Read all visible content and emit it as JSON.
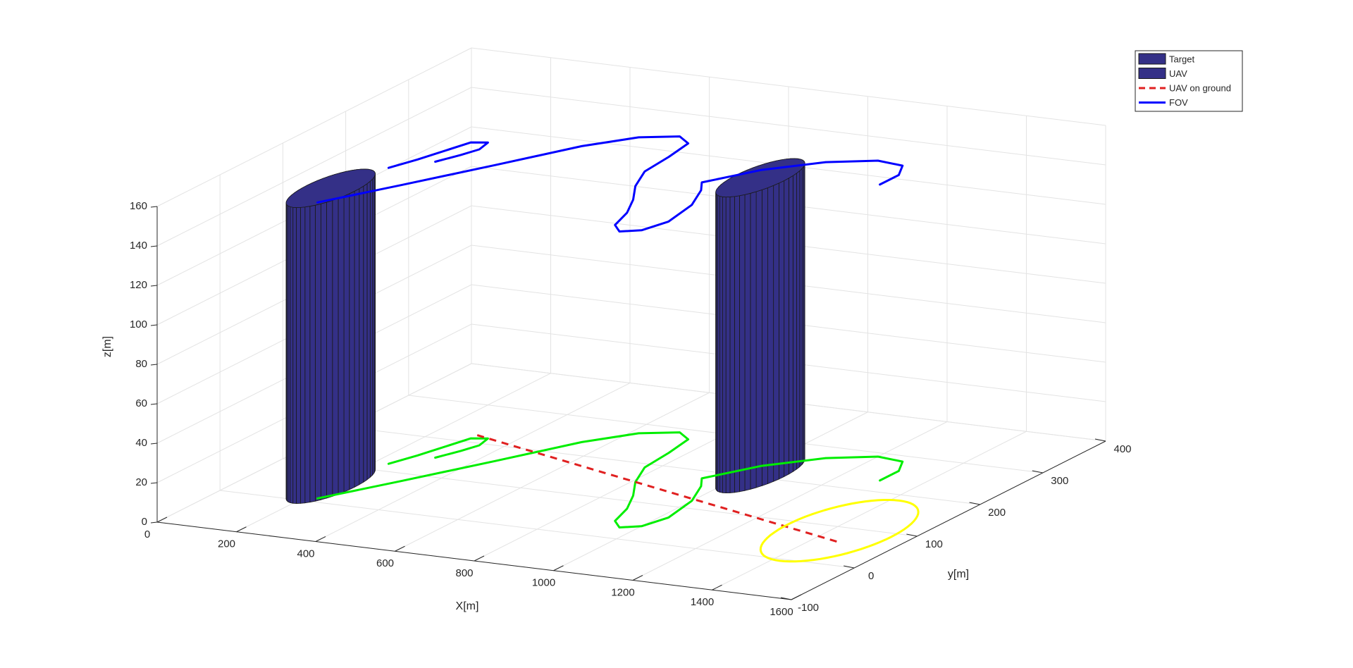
{
  "chart_data": {
    "type": "3d-line",
    "title": "",
    "xlabel": "X[m]",
    "ylabel": "y[m]",
    "zlabel": "z[m]",
    "xlim": [
      0,
      1600
    ],
    "ylim": [
      -100,
      400
    ],
    "zlim": [
      0,
      160
    ],
    "xticks": [
      {
        "value": 0,
        "label": "0"
      },
      {
        "value": 200,
        "label": "200"
      },
      {
        "value": 400,
        "label": "400"
      },
      {
        "value": 600,
        "label": "600"
      },
      {
        "value": 800,
        "label": "800"
      },
      {
        "value": 1000,
        "label": "1000"
      },
      {
        "value": 1200,
        "label": "1200"
      },
      {
        "value": 1400,
        "label": "1400"
      },
      {
        "value": 1600,
        "label": "1600"
      }
    ],
    "yticks": [
      {
        "value": -100,
        "label": "-100"
      },
      {
        "value": 0,
        "label": "0"
      },
      {
        "value": 100,
        "label": "100"
      },
      {
        "value": 200,
        "label": "200"
      },
      {
        "value": 300,
        "label": "300"
      },
      {
        "value": 400,
        "label": "400"
      }
    ],
    "zticks": [
      {
        "value": 0,
        "label": "0"
      },
      {
        "value": 20,
        "label": "20"
      },
      {
        "value": 40,
        "label": "40"
      },
      {
        "value": 60,
        "label": "60"
      },
      {
        "value": 80,
        "label": "80"
      },
      {
        "value": 100,
        "label": "100"
      },
      {
        "value": 120,
        "label": "120"
      },
      {
        "value": 140,
        "label": "140"
      },
      {
        "value": 160,
        "label": "160"
      }
    ],
    "grid": true,
    "legend_position": "top-right",
    "legend": [
      {
        "label": "Target",
        "style": "patch",
        "color": "#343087"
      },
      {
        "label": "UAV",
        "style": "patch",
        "color": "#343087"
      },
      {
        "label": "UAV on ground",
        "style": "dashed",
        "color": "#e02020"
      },
      {
        "label": "FOV",
        "style": "solid",
        "color": "#0000ff"
      }
    ],
    "cylinders": [
      {
        "name": "cylinder-1",
        "center": [
          200,
          50
        ],
        "radius": 60,
        "z_bottom": 0,
        "z_top": 150,
        "color": "#343087"
      },
      {
        "name": "cylinder-2",
        "center": [
          1030,
          210
        ],
        "radius": 60,
        "z_bottom": 0,
        "z_top": 150,
        "color": "#343087"
      }
    ],
    "series": [
      {
        "style": "solid",
        "color": "#0000ff",
        "z": 150,
        "points": [
          [
            230,
            10
          ],
          [
            330,
            80
          ],
          [
            440,
            160
          ],
          [
            540,
            235
          ],
          [
            620,
            275
          ],
          [
            700,
            290
          ],
          [
            745,
            275
          ],
          [
            760,
            235
          ],
          [
            770,
            190
          ],
          [
            810,
            150
          ],
          [
            860,
            115
          ],
          [
            900,
            80
          ],
          [
            925,
            45
          ],
          [
            960,
            30
          ],
          [
            1000,
            40
          ],
          [
            1020,
            70
          ],
          [
            1000,
            120
          ],
          [
            960,
            160
          ],
          [
            930,
            180
          ],
          [
            1000,
            230
          ],
          [
            1100,
            270
          ],
          [
            1200,
            290
          ],
          [
            1270,
            285
          ],
          [
            1300,
            260
          ],
          [
            1300,
            230
          ]
        ]
      },
      {
        "style": "solid",
        "color": "#0000ff",
        "z": 150,
        "points": [
          [
            305,
            150
          ],
          [
            330,
            175
          ],
          [
            345,
            195
          ],
          [
            335,
            215
          ],
          [
            300,
            210
          ],
          [
            260,
            150
          ],
          [
            235,
            120
          ]
        ]
      },
      {
        "style": "solid",
        "color": "#00ee00",
        "z": 0,
        "points": [
          [
            230,
            10
          ],
          [
            330,
            80
          ],
          [
            440,
            160
          ],
          [
            540,
            235
          ],
          [
            620,
            275
          ],
          [
            700,
            290
          ],
          [
            745,
            275
          ],
          [
            760,
            235
          ],
          [
            770,
            190
          ],
          [
            810,
            150
          ],
          [
            860,
            115
          ],
          [
            900,
            80
          ],
          [
            925,
            45
          ],
          [
            960,
            30
          ],
          [
            1000,
            40
          ],
          [
            1020,
            70
          ],
          [
            1000,
            120
          ],
          [
            960,
            160
          ],
          [
            930,
            180
          ],
          [
            1000,
            230
          ],
          [
            1100,
            270
          ],
          [
            1200,
            290
          ],
          [
            1270,
            285
          ],
          [
            1300,
            260
          ],
          [
            1300,
            230
          ]
        ]
      },
      {
        "style": "solid",
        "color": "#00ee00",
        "z": 0,
        "points": [
          [
            305,
            150
          ],
          [
            330,
            175
          ],
          [
            345,
            195
          ],
          [
            335,
            215
          ],
          [
            300,
            210
          ],
          [
            260,
            150
          ],
          [
            235,
            120
          ]
        ]
      },
      {
        "style": "dashed",
        "color": "#e02020",
        "z": 0,
        "points": [
          [
            300,
            220
          ],
          [
            1470,
            60
          ]
        ]
      },
      {
        "style": "solid",
        "color": "#ffff00",
        "z": 0,
        "shape": "ellipse",
        "center": [
          1420,
          90
        ],
        "rx": 130,
        "ry": 95
      }
    ]
  }
}
